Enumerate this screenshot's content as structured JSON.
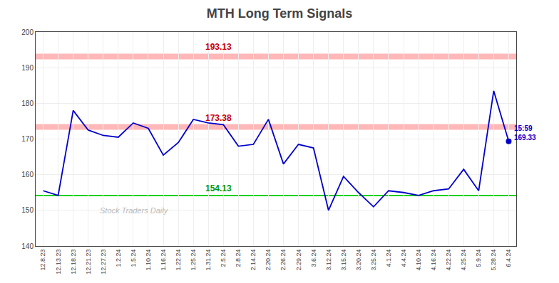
{
  "chart_data": {
    "type": "line",
    "title": "MTH Long Term Signals",
    "categories": [
      "12.8.23",
      "12.13.23",
      "12.18.23",
      "12.21.23",
      "12.27.23",
      "1.2.24",
      "1.5.24",
      "1.10.24",
      "1.16.24",
      "1.22.24",
      "1.25.24",
      "1.31.24",
      "2.5.24",
      "2.8.24",
      "2.14.24",
      "2.20.24",
      "2.26.24",
      "2.29.24",
      "3.6.24",
      "3.12.24",
      "3.15.24",
      "3.20.24",
      "3.25.24",
      "4.1.24",
      "4.4.24",
      "4.10.24",
      "4.16.24",
      "4.22.24",
      "4.25.24",
      "5.9.24",
      "5.28.24",
      "6.4.24"
    ],
    "values": [
      155.5,
      154.2,
      178.0,
      172.5,
      171.0,
      170.5,
      174.5,
      173.0,
      165.5,
      169.0,
      175.5,
      174.5,
      174.0,
      168.0,
      168.5,
      175.5,
      163.0,
      168.5,
      167.5,
      150.0,
      159.5,
      155.0,
      151.0,
      155.5,
      155.0,
      154.2,
      155.5,
      156.0,
      161.5,
      155.5,
      183.5,
      169.33
    ],
    "color": "#0000cc",
    "ylim": [
      140,
      200
    ],
    "yticks": [
      140,
      150,
      160,
      170,
      180,
      190,
      200
    ],
    "grid": true,
    "hlines": [
      {
        "value": 193.13,
        "label": "193.13",
        "color": "#ff9999",
        "label_color": "#cc0000"
      },
      {
        "value": 173.38,
        "label": "173.38",
        "color": "#ff9999",
        "label_color": "#cc0000"
      },
      {
        "value": 154.13,
        "label": "154.13",
        "color": "#00cc00",
        "label_color": "#009900"
      }
    ],
    "annotations": [
      {
        "x": "6.4.24",
        "y": 169.33,
        "text": [
          "15:59",
          "169.33"
        ],
        "color": "#0000cc"
      }
    ],
    "watermark": {
      "text": "Stock Traders Daily",
      "color": "#aaaaaa"
    }
  }
}
